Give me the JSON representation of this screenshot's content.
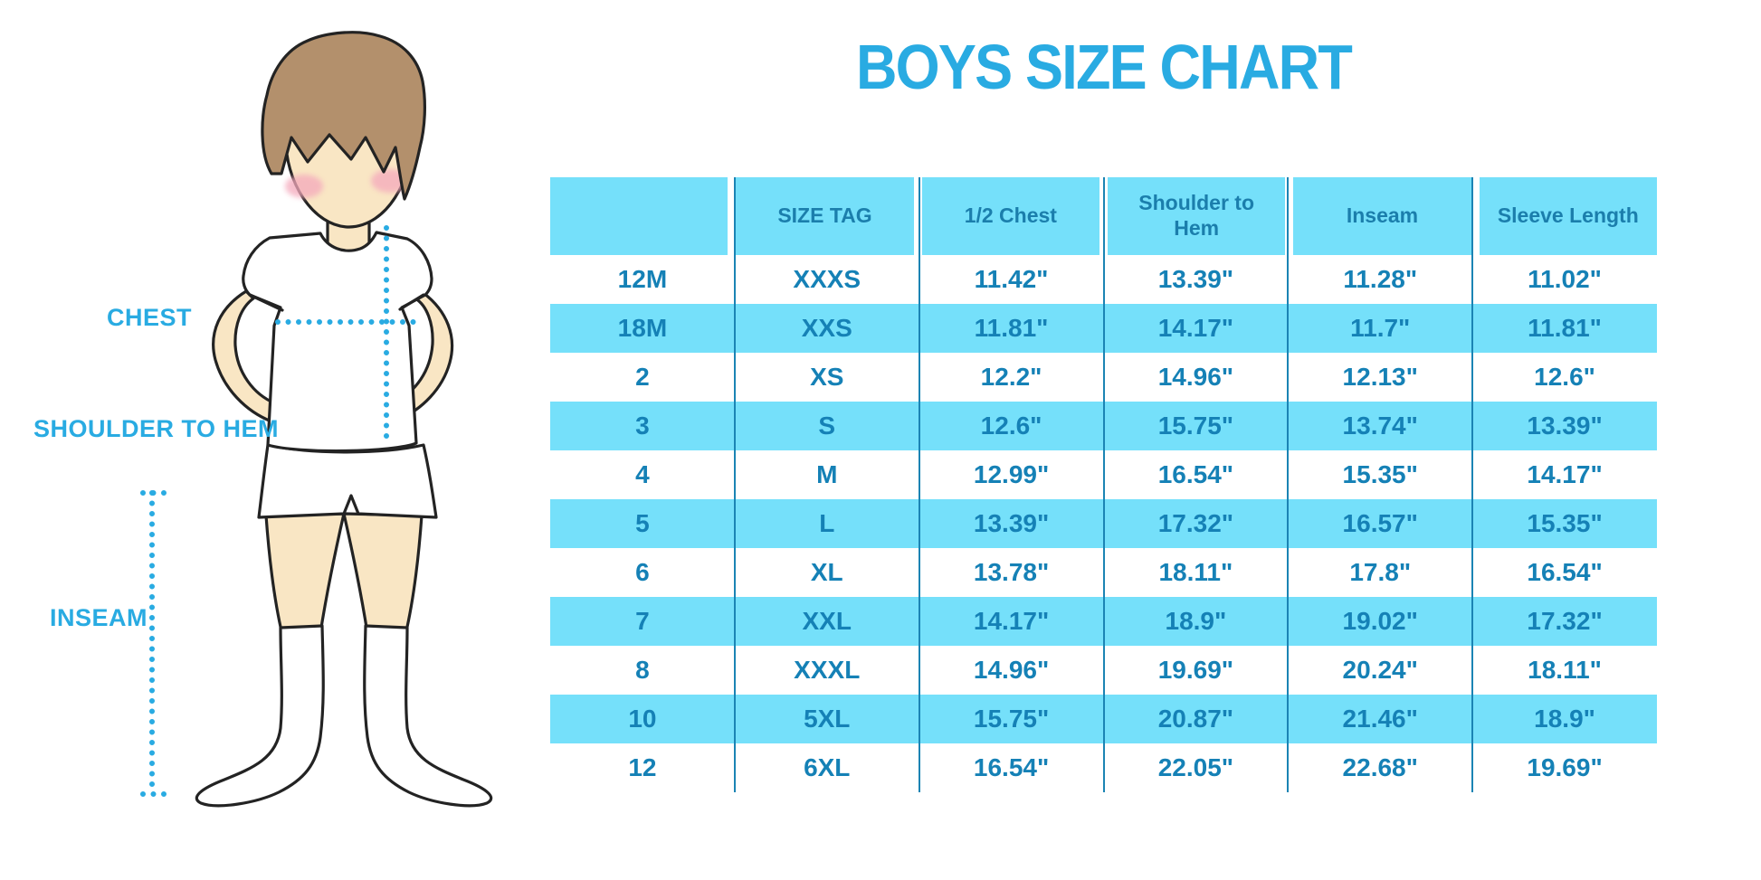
{
  "title": "BOYS SIZE CHART",
  "figure_labels": {
    "chest": "CHEST",
    "shoulder_to_hem": "SHOULDER TO HEM",
    "inseam": "INSEAM"
  },
  "colors": {
    "accent_blue": "#29ABE2",
    "table_fill": "#75E0FA",
    "table_separator_line": "#1B84B4",
    "table_body_text": "#1581B6",
    "table_header_text": "#1B7EAC",
    "skin": "#F9E6C4",
    "hair": "#B3906C",
    "blush": "#F4A9BC",
    "outline": "#232323"
  },
  "chart_data": {
    "type": "table",
    "title": "BOYS SIZE CHART",
    "columns": [
      "",
      "SIZE TAG",
      "1/2 Chest",
      "Shoulder to Hem",
      "Inseam",
      "Sleeve Length"
    ],
    "rows": [
      [
        "12M",
        "XXXS",
        "11.42\"",
        "13.39\"",
        "11.28\"",
        "11.02\""
      ],
      [
        "18M",
        "XXS",
        "11.81\"",
        "14.17\"",
        "11.7\"",
        "11.81\""
      ],
      [
        "2",
        "XS",
        "12.2\"",
        "14.96\"",
        "12.13\"",
        "12.6\""
      ],
      [
        "3",
        "S",
        "12.6\"",
        "15.75\"",
        "13.74\"",
        "13.39\""
      ],
      [
        "4",
        "M",
        "12.99\"",
        "16.54\"",
        "15.35\"",
        "14.17\""
      ],
      [
        "5",
        "L",
        "13.39\"",
        "17.32\"",
        "16.57\"",
        "15.35\""
      ],
      [
        "6",
        "XL",
        "13.78\"",
        "18.11\"",
        "17.8\"",
        "16.54\""
      ],
      [
        "7",
        "XXL",
        "14.17\"",
        "18.9\"",
        "19.02\"",
        "17.32\""
      ],
      [
        "8",
        "XXXL",
        "14.96\"",
        "19.69\"",
        "20.24\"",
        "18.11\""
      ],
      [
        "10",
        "5XL",
        "15.75\"",
        "20.87\"",
        "21.46\"",
        "18.9\""
      ],
      [
        "12",
        "6XL",
        "16.54\"",
        "22.05\"",
        "22.68\"",
        "19.69\""
      ]
    ],
    "row_striping": "alternating white / light-blue starting with white",
    "grid": "vertical column separator lines only, no horizontal lines",
    "legend_position": "none"
  }
}
